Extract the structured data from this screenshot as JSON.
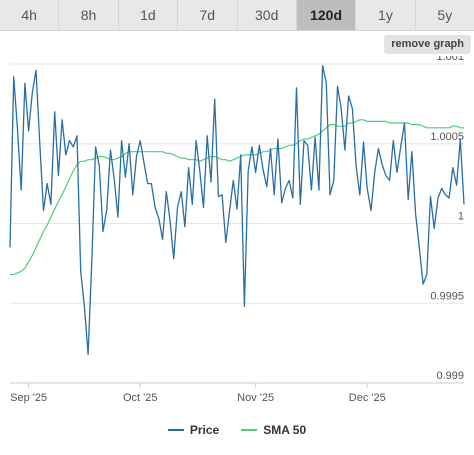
{
  "range_tabs": [
    {
      "label": "4h",
      "active": false
    },
    {
      "label": "8h",
      "active": false
    },
    {
      "label": "1d",
      "active": false
    },
    {
      "label": "7d",
      "active": false
    },
    {
      "label": "30d",
      "active": false
    },
    {
      "label": "120d",
      "active": true
    },
    {
      "label": "1y",
      "active": false
    },
    {
      "label": "5y",
      "active": false
    }
  ],
  "remove_graph_label": "remove graph",
  "colors": {
    "price": "#2a6ea6",
    "sma": "#4ccf7c",
    "grid": "#e6e6e6",
    "axis": "#cccccc"
  },
  "chart_data": {
    "type": "line",
    "title": "",
    "xlabel": "",
    "ylabel": "",
    "ylim": [
      0.999,
      1.001
    ],
    "y_ticks": [
      0.999,
      0.9995,
      1,
      1.0005,
      1.001
    ],
    "y_tick_labels": [
      "0.999",
      "0.9995",
      "1",
      "1.0005",
      "1.001"
    ],
    "x_ticks": [
      {
        "label": "Sep '25",
        "day": 5
      },
      {
        "label": "Oct '25",
        "day": 35
      },
      {
        "label": "Nov '25",
        "day": 66
      },
      {
        "label": "Dec '25",
        "day": 96
      }
    ],
    "grid": true,
    "legend_position": "bottom-center",
    "series": [
      {
        "name": "Price",
        "color": "#2a6ea6",
        "x_start": 0,
        "x_step": 1,
        "values": [
          0.99985,
          1.00092,
          1.0006,
          1.00021,
          1.00088,
          1.00058,
          1.00082,
          1.00096,
          1.0005,
          1.00008,
          1.00025,
          1.00012,
          1.0007,
          1.0003,
          1.00065,
          1.00043,
          1.00052,
          1.00048,
          1.00055,
          0.9997,
          0.99948,
          0.99918,
          0.99978,
          1.00048,
          1.00036,
          0.99995,
          1.00009,
          1.00046,
          1.00028,
          1.00004,
          1.00052,
          1.00029,
          1.0005,
          1.00018,
          1.00042,
          1.00052,
          1.00038,
          1.00025,
          1.00025,
          1.0001,
          1.00003,
          0.9999,
          1.0002,
          1.00002,
          0.99978,
          1.0001,
          1.0002,
          0.99998,
          1.00035,
          1.00012,
          1.00052,
          1.00033,
          1.0001,
          1.00055,
          1.00026,
          1.00078,
          1.00017,
          1.00018,
          0.99988,
          1.00008,
          1.00027,
          1.00009,
          1.00043,
          0.99948,
          1.00033,
          1.00048,
          1.00032,
          1.00049,
          1.00034,
          1.00023,
          1.00047,
          1.00018,
          1.00053,
          1.00013,
          1.00022,
          1.00027,
          1.00016,
          1.00085,
          1.00012,
          1.00052,
          1.00049,
          1.00021,
          1.00054,
          1.00021,
          1.00099,
          1.00088,
          1.00018,
          1.00027,
          1.00086,
          1.00072,
          1.00046,
          1.0008,
          1.00072,
          1.00036,
          1.00018,
          1.00051,
          1.00022,
          1.00008,
          1.00032,
          1.00047,
          1.00037,
          1.0003,
          1.00027,
          1.00052,
          1.00032,
          1.00048,
          1.00063,
          1.00015,
          1.00045,
          1.00006,
          0.99985,
          0.99962,
          0.99968,
          1.00017,
          0.99997,
          1.00016,
          1.00022,
          1.00018,
          1.00016,
          1.00035,
          1.00024,
          1.00053,
          1.00012
        ]
      },
      {
        "name": "SMA 50",
        "color": "#4ccf7c",
        "x_start": 0,
        "x_step": 1,
        "values": [
          0.99968,
          0.99968,
          0.99969,
          0.9997,
          0.99972,
          0.99976,
          0.9998,
          0.99985,
          0.9999,
          0.99995,
          0.99999,
          1.00004,
          1.00009,
          1.00014,
          1.00018,
          1.00023,
          1.00028,
          1.00033,
          1.00037,
          1.00039,
          1.00039,
          1.0004,
          1.0004,
          1.00041,
          1.00042,
          1.00042,
          1.00041,
          1.0004,
          1.0004,
          1.00041,
          1.00042,
          1.00044,
          1.00045,
          1.00045,
          1.00045,
          1.00045,
          1.00045,
          1.00045,
          1.00045,
          1.00045,
          1.00045,
          1.00045,
          1.00044,
          1.00044,
          1.00043,
          1.00042,
          1.00041,
          1.00041,
          1.0004,
          1.0004,
          1.0004,
          1.00039,
          1.0004,
          1.00041,
          1.00042,
          1.00042,
          1.00041,
          1.0004,
          1.0004,
          1.00039,
          1.0004,
          1.00041,
          1.00042,
          1.00043,
          1.00043,
          1.00043,
          1.00043,
          1.00044,
          1.00045,
          1.00045,
          1.00046,
          1.00047,
          1.00047,
          1.00047,
          1.00048,
          1.00049,
          1.00049,
          1.0005,
          1.00052,
          1.00053,
          1.00053,
          1.00054,
          1.00055,
          1.00056,
          1.00058,
          1.0006,
          1.00062,
          1.00062,
          1.00061,
          1.00061,
          1.00061,
          1.00063,
          1.00063,
          1.00064,
          1.00065,
          1.00065,
          1.00064,
          1.00064,
          1.00064,
          1.00064,
          1.00064,
          1.00064,
          1.00063,
          1.00063,
          1.00063,
          1.00063,
          1.00063,
          1.00063,
          1.00062,
          1.00062,
          1.00062,
          1.00061,
          1.0006,
          1.0006,
          1.0006,
          1.0006,
          1.0006,
          1.0006,
          1.0006,
          1.00061,
          1.00061,
          1.0006,
          1.0006
        ]
      }
    ]
  }
}
